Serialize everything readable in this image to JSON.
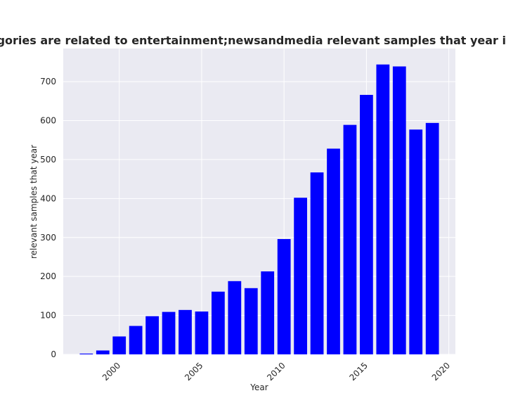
{
  "chart_data": {
    "type": "bar",
    "title": "Category: Categories are related to entertainment;newsandmedia relevant samples that year in privacy policies",
    "xlabel": "Year",
    "ylabel": "relevant samples that year",
    "x": [
      1997,
      1998,
      1999,
      2000,
      2001,
      2002,
      2003,
      2004,
      2005,
      2006,
      2007,
      2008,
      2009,
      2010,
      2011,
      2012,
      2013,
      2014,
      2015,
      2016,
      2017,
      2018,
      2019
    ],
    "values": [
      0,
      2,
      10,
      46,
      73,
      98,
      109,
      114,
      110,
      161,
      188,
      170,
      213,
      296,
      402,
      467,
      528,
      589,
      666,
      744,
      739,
      577,
      594
    ],
    "xlim": [
      1996.6,
      2020.4
    ],
    "ylim": [
      0,
      785
    ],
    "xticks": [
      2000,
      2005,
      2010,
      2015,
      2020
    ],
    "yticks": [
      0,
      100,
      200,
      300,
      400,
      500,
      600,
      700
    ],
    "bar_color": "#0000ff",
    "background_color": "#eaeaf2",
    "grid": true,
    "legend": false
  }
}
